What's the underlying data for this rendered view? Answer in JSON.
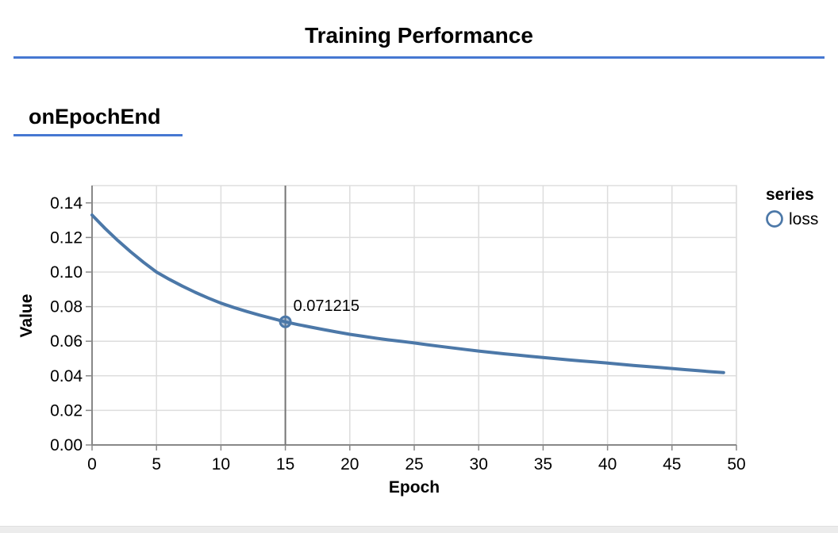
{
  "header": {
    "title": "Training Performance"
  },
  "section": {
    "label": "onEpochEnd"
  },
  "colors": {
    "accent_blue": "#4678d2",
    "series_blue": "#4c78a8",
    "crosshair": "#757575",
    "axis": "#888888",
    "grid": "#dddddd",
    "bottom_strip": "#ececec"
  },
  "legend": {
    "title": "series",
    "items": [
      {
        "label": "loss",
        "marker": "circle-outline-icon",
        "color": "#4c78a8"
      }
    ]
  },
  "tooltip": {
    "label": "0.071215",
    "epoch": 15,
    "value": 0.071215
  },
  "chart_data": {
    "type": "line",
    "title": "",
    "xlabel": "Epoch",
    "ylabel": "Value",
    "xlim": [
      0,
      50
    ],
    "ylim": [
      0,
      0.15
    ],
    "x_ticks": [
      0,
      5,
      10,
      15,
      20,
      25,
      30,
      35,
      40,
      45,
      50
    ],
    "x_tick_labels": [
      "0",
      "5",
      "10",
      "15",
      "20",
      "25",
      "30",
      "35",
      "40",
      "45",
      "50"
    ],
    "y_ticks": [
      0,
      0.02,
      0.04,
      0.06,
      0.08,
      0.1,
      0.12,
      0.14
    ],
    "y_tick_labels": [
      "0.00",
      "0.02",
      "0.04",
      "0.06",
      "0.08",
      "0.10",
      "0.12",
      "0.14"
    ],
    "grid": true,
    "legend_position": "right",
    "series": [
      {
        "name": "loss",
        "color": "#4c78a8",
        "x": [
          0,
          1,
          2,
          3,
          4,
          5,
          6,
          7,
          8,
          9,
          10,
          11,
          12,
          13,
          14,
          15,
          16,
          17,
          18,
          19,
          20,
          21,
          22,
          23,
          24,
          25,
          26,
          27,
          28,
          29,
          30,
          31,
          32,
          33,
          34,
          35,
          36,
          37,
          38,
          39,
          40,
          41,
          42,
          43,
          44,
          45,
          46,
          47,
          48,
          49
        ],
        "values": [
          0.133,
          0.1253,
          0.1182,
          0.1117,
          0.1056,
          0.1,
          0.0958,
          0.0919,
          0.0883,
          0.085,
          0.082,
          0.0795,
          0.0772,
          0.0751,
          0.0731,
          0.071215,
          0.0696,
          0.0681,
          0.0667,
          0.0653,
          0.064,
          0.0629,
          0.0618,
          0.0608,
          0.0599,
          0.059,
          0.058,
          0.057,
          0.0561,
          0.0552,
          0.0543,
          0.0535,
          0.0527,
          0.052,
          0.0513,
          0.0506,
          0.0499,
          0.0492,
          0.0486,
          0.048,
          0.0474,
          0.0467,
          0.046,
          0.0454,
          0.0448,
          0.0442,
          0.0436,
          0.043,
          0.0424,
          0.0419
        ]
      }
    ],
    "highlight": {
      "series": "loss",
      "x": 15,
      "y": 0.071215,
      "label": "0.071215"
    }
  }
}
